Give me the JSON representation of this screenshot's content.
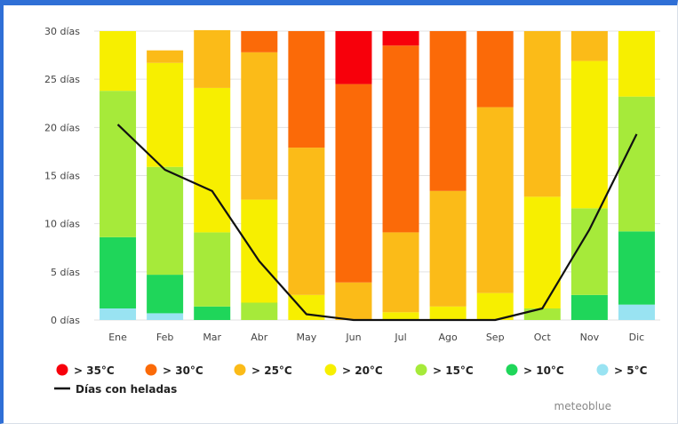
{
  "chart_data": {
    "type": "bar",
    "stacked": true,
    "categories": [
      "Ene",
      "Feb",
      "Mar",
      "Abr",
      "May",
      "Jun",
      "Jul",
      "Ago",
      "Sep",
      "Oct",
      "Nov",
      "Dic"
    ],
    "yticks": [
      "0 días",
      "5 días",
      "10 días",
      "15 días",
      "20 días",
      "25 días",
      "30 días"
    ],
    "ylim": [
      0,
      30
    ],
    "grid": true,
    "series": [
      {
        "name": "> 5°C",
        "color": "#99e3f2",
        "values": [
          1.2,
          0.7,
          0,
          0,
          0,
          0,
          0,
          0,
          0,
          0,
          0,
          1.6
        ]
      },
      {
        "name": "> 10°C",
        "color": "#1fd65a",
        "values": [
          7.4,
          4.0,
          1.4,
          0,
          0,
          0,
          0,
          0,
          0,
          0,
          2.6,
          7.6
        ]
      },
      {
        "name": "> 15°C",
        "color": "#a6ea3a",
        "values": [
          15.2,
          11.2,
          7.7,
          1.8,
          0,
          0,
          0,
          0,
          0,
          1.2,
          9.0,
          14.0
        ]
      },
      {
        "name": "> 20°C",
        "color": "#f7ef00",
        "values": [
          6.2,
          10.8,
          15.0,
          10.7,
          2.6,
          0,
          0.8,
          1.4,
          2.8,
          11.6,
          15.3,
          6.8
        ]
      },
      {
        "name": "> 25°C",
        "color": "#fbbb18",
        "values": [
          0,
          1.3,
          6.0,
          15.3,
          15.3,
          3.9,
          8.3,
          12.0,
          19.3,
          17.2,
          3.1,
          0
        ]
      },
      {
        "name": "> 30°C",
        "color": "#fb6a08",
        "values": [
          0,
          0,
          0,
          2.2,
          12.1,
          20.6,
          19.4,
          16.6,
          7.9,
          0,
          0,
          0
        ]
      },
      {
        "name": "> 35°C",
        "color": "#f7000b",
        "values": [
          0,
          0,
          0,
          0,
          0,
          5.5,
          1.5,
          0,
          0,
          0,
          0,
          0
        ]
      }
    ],
    "line": {
      "name": "Días con heladas",
      "color": "#111111",
      "values": [
        20.3,
        15.6,
        13.4,
        6.1,
        0.6,
        0,
        0,
        0,
        0,
        1.2,
        9.4,
        19.3
      ]
    }
  },
  "credit": "meteoblue"
}
